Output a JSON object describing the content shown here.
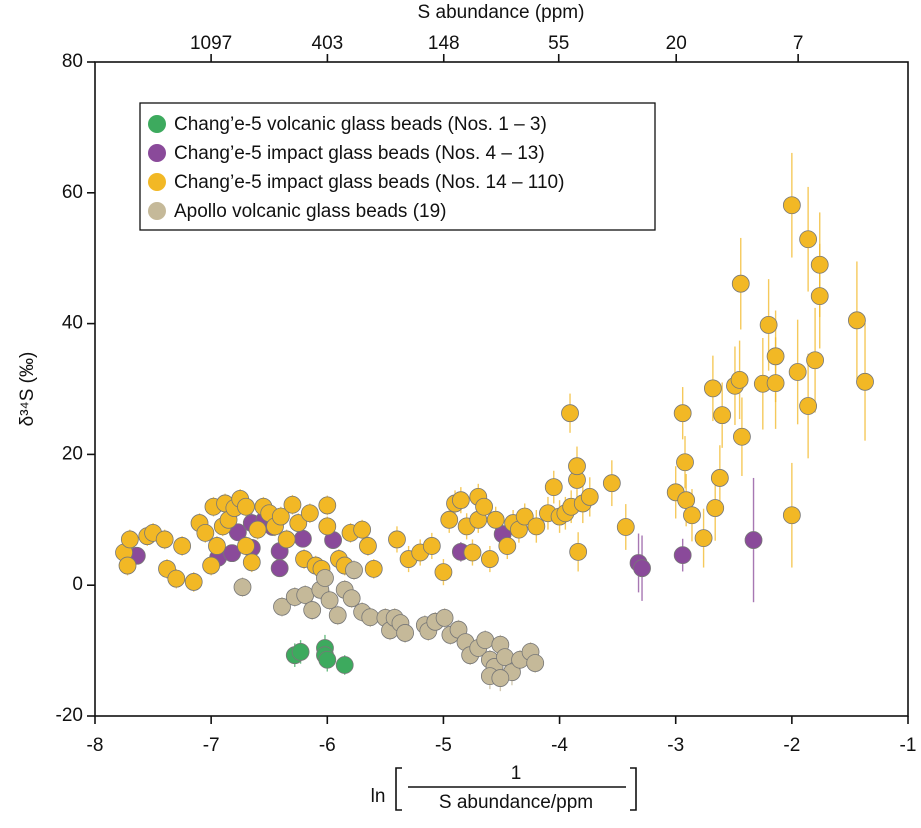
{
  "chart_data": {
    "type": "scatter",
    "xlabel": {
      "prefix": "ln",
      "numerator": "1",
      "denominator": "S abundance/ppm"
    },
    "ylabel": "δ³⁴S (‰)",
    "x2label": "S abundance (ppm)",
    "x2scale": "negative-ln",
    "x2ticks": [
      1097,
      403,
      148,
      55,
      20,
      7
    ],
    "xlim": [
      -8,
      -1
    ],
    "xticks": [
      -8,
      -7,
      -6,
      -5,
      -4,
      -3,
      -2,
      -1
    ],
    "ylim": [
      -20,
      80
    ],
    "yticks": [
      -20,
      0,
      20,
      40,
      60,
      80
    ],
    "legend": "upper left",
    "series": [
      {
        "name": "Chang’e-5 volcanic glass beads (Nos. 1 – 3)",
        "color": "#3daa5e",
        "x": [
          -6.28,
          -6.23,
          -6.02,
          -6.02,
          -6.0,
          -5.85
        ],
        "values": [
          -10.7,
          -10.2,
          -9.6,
          -10.7,
          -11.4,
          -12.2
        ],
        "errors": [
          1.8,
          1.8,
          2,
          1.8,
          1.8,
          1.5
        ]
      },
      {
        "name": "Chang’e-5 impact glass beads (Nos. 4 – 13)",
        "color": "#8a4a9a",
        "x": [
          -7.64,
          -6.94,
          -6.82,
          -6.77,
          -6.65,
          -6.65,
          -6.54,
          -6.47,
          -6.41,
          -6.41,
          -6.21,
          -5.95,
          -4.85,
          -4.49,
          -3.32,
          -3.29,
          -2.94,
          -2.33
        ],
        "values": [
          4.5,
          4.2,
          4.9,
          8.1,
          9.5,
          5.7,
          10.0,
          8.9,
          5.2,
          2.6,
          7.1,
          6.9,
          5.1,
          7.8,
          3.4,
          2.6,
          4.6,
          6.9
        ],
        "errors": [
          1,
          1,
          1.2,
          1.2,
          1.5,
          1,
          1.5,
          1.2,
          1.5,
          1,
          1.2,
          1.2,
          1.5,
          1.5,
          4.5,
          5,
          2.5,
          9.5
        ]
      },
      {
        "name": "Chang’e-5 impact glass beads (Nos. 14 – 110)",
        "color": "#f2b825",
        "x": [
          -7.75,
          -7.7,
          -7.72,
          -7.55,
          -7.5,
          -7.4,
          -7.38,
          -7.3,
          -7.25,
          -7.15,
          -7.1,
          -7.05,
          -7.0,
          -6.98,
          -6.95,
          -6.9,
          -6.88,
          -6.85,
          -6.8,
          -6.75,
          -6.7,
          -6.7,
          -6.65,
          -6.6,
          -6.55,
          -6.5,
          -6.45,
          -6.4,
          -6.35,
          -6.3,
          -6.25,
          -6.2,
          -6.15,
          -6.1,
          -6.05,
          -6.0,
          -6.0,
          -5.9,
          -5.85,
          -5.8,
          -5.7,
          -5.65,
          -5.6,
          -5.4,
          -5.3,
          -5.2,
          -5.1,
          -5.0,
          -4.95,
          -4.9,
          -4.85,
          -4.8,
          -4.75,
          -4.7,
          -4.7,
          -4.65,
          -4.6,
          -4.55,
          -4.45,
          -4.4,
          -4.35,
          -4.3,
          -4.2,
          -4.1,
          -4.05,
          -4.0,
          -3.95,
          -3.9,
          -3.91,
          -3.85,
          -3.85,
          -3.8,
          -3.84,
          -3.74,
          -3.55,
          -3.43,
          -3.0,
          -2.92,
          -2.91,
          -2.86,
          -2.94,
          -2.76,
          -2.68,
          -2.66,
          -2.62,
          -2.6,
          -2.49,
          -2.45,
          -2.44,
          -2.43,
          -2.25,
          -2.2,
          -2.14,
          -2.14,
          -2.0,
          -2.0,
          -1.95,
          -1.86,
          -1.86,
          -1.8,
          -1.76,
          -1.76,
          -1.44,
          -1.37
        ],
        "values": [
          5,
          7,
          3,
          7.5,
          8,
          7,
          2.5,
          1,
          6,
          0.5,
          9.5,
          8,
          3,
          12,
          6,
          9,
          12.5,
          10,
          11.8,
          13.2,
          12,
          6,
          3.5,
          8.5,
          12,
          11,
          9,
          10.5,
          7,
          12.3,
          9.5,
          4,
          11,
          3,
          2.5,
          12.2,
          9,
          4,
          3,
          8,
          8.5,
          6,
          2.5,
          7,
          4,
          5,
          6,
          2,
          10,
          12.5,
          13,
          9,
          5,
          10,
          13.5,
          12,
          4,
          10,
          6,
          9.5,
          8.5,
          10.5,
          9,
          11,
          15,
          10.5,
          11,
          12,
          26.3,
          16.1,
          18.2,
          12.5,
          5.1,
          13.5,
          15.6,
          8.9,
          14.2,
          18.8,
          13,
          10.7,
          26.3,
          7.2,
          30.1,
          11.8,
          16.4,
          26,
          30.5,
          31.4,
          46.1,
          22.7,
          30.8,
          39.8,
          35,
          30.9,
          58.1,
          10.7,
          32.6,
          52.9,
          27.4,
          34.4,
          49,
          44.2,
          40.5,
          31.1
        ],
        "errors": [
          1.5,
          1.5,
          1.5,
          1.5,
          1.5,
          1.5,
          1.5,
          1.5,
          1.5,
          1.5,
          1.5,
          1.5,
          1.5,
          1.5,
          1.5,
          1.5,
          1.5,
          1.5,
          1.5,
          1.5,
          1.5,
          1.5,
          1.5,
          1.5,
          1.5,
          1.5,
          1.5,
          1.5,
          1.5,
          1.5,
          1.5,
          1.5,
          1.5,
          1.5,
          1.5,
          1.5,
          1.5,
          1.5,
          1.5,
          1.5,
          1.5,
          1.5,
          1.5,
          2,
          2,
          2,
          2,
          2,
          2,
          2,
          2,
          2,
          2,
          2,
          2,
          2,
          2,
          2,
          2,
          2,
          2,
          2,
          2.5,
          2.5,
          2.5,
          2.5,
          2.5,
          2.5,
          3,
          3,
          3,
          3,
          3,
          3,
          3.5,
          3.5,
          4,
          4,
          4,
          4,
          4,
          4.5,
          5,
          5,
          5,
          5,
          6,
          6,
          7,
          6,
          7,
          7,
          7,
          7,
          8,
          8,
          8,
          8,
          8,
          8,
          8,
          8,
          9,
          9
        ]
      },
      {
        "name": "Apollo volcanic glass beads (19)",
        "color": "#c5b999",
        "x": [
          -6.73,
          -6.39,
          -6.28,
          -6.19,
          -6.13,
          -6.06,
          -6.02,
          -5.98,
          -5.91,
          -5.85,
          -5.79,
          -5.77,
          -5.7,
          -5.63,
          -5.5,
          -5.46,
          -5.42,
          -5.37,
          -5.33,
          -5.16,
          -5.13,
          -5.07,
          -4.99,
          -4.94,
          -4.87,
          -4.81,
          -4.77,
          -4.7,
          -4.64,
          -4.6,
          -4.56,
          -4.51,
          -4.47,
          -4.41,
          -4.34,
          -4.25,
          -4.21,
          -4.6,
          -4.51
        ],
        "values": [
          -0.3,
          -3.3,
          -1.8,
          -1.5,
          -3.8,
          -0.7,
          1.1,
          -2.3,
          -4.6,
          -0.7,
          -2.0,
          2.3,
          -4.1,
          -4.9,
          -5.0,
          -6.9,
          -5.0,
          -5.8,
          -7.3,
          -6.1,
          -7.0,
          -5.6,
          -5.0,
          -7.6,
          -6.8,
          -8.7,
          -10.7,
          -9.6,
          -8.4,
          -11.4,
          -12.5,
          -9.1,
          -11.0,
          -13.3,
          -11.4,
          -10.2,
          -11.9,
          -13.9,
          -14.2
        ],
        "errors": [
          1.5,
          1.5,
          1.5,
          1.5,
          1.5,
          1.5,
          1.5,
          1.5,
          1.5,
          1.5,
          1.5,
          1.5,
          1.5,
          1.5,
          1.5,
          1.5,
          1.5,
          1.5,
          1.5,
          1.5,
          1.5,
          1.5,
          1.5,
          1.5,
          1.5,
          1.5,
          1.5,
          1.5,
          1.5,
          1.5,
          1.5,
          1.5,
          1.5,
          2,
          1.5,
          1.5,
          1.5,
          2,
          2
        ]
      }
    ]
  }
}
